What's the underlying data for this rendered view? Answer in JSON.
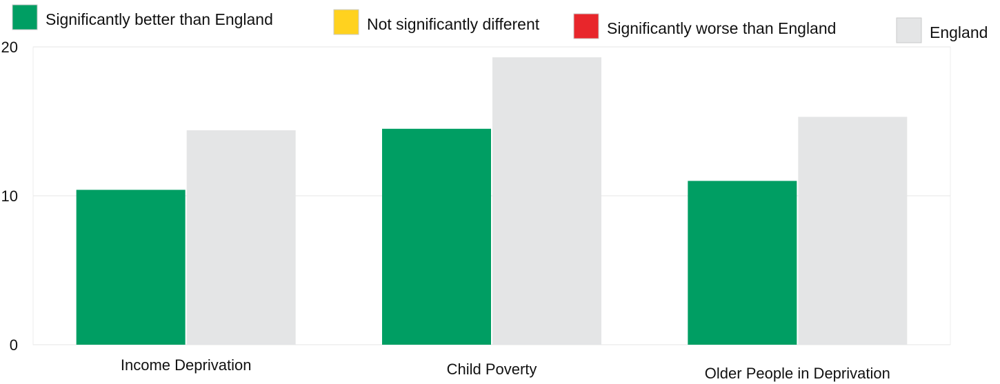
{
  "chart_data": {
    "type": "bar",
    "categories": [
      "Income Deprivation",
      "Child Poverty",
      "Older People in Deprivation"
    ],
    "series": [
      {
        "key": "local_area",
        "values": [
          10.4,
          14.5,
          11.0
        ],
        "color": "#009e63"
      },
      {
        "name": "England",
        "key": "england",
        "values": [
          14.4,
          19.3,
          15.3
        ],
        "color": "#e4e5e6"
      }
    ],
    "legend": [
      {
        "label": "Significantly better than England",
        "color": "#009e63"
      },
      {
        "label": "Not significantly different",
        "color": "#ffd21f"
      },
      {
        "label": "Significantly worse than England",
        "color": "#e8262b"
      },
      {
        "label": "England",
        "color": "#e4e5e6"
      }
    ],
    "legend_position": "top",
    "ylim": [
      0,
      20
    ],
    "yticks": [
      "0",
      "10",
      "20"
    ],
    "grid": true,
    "title": "",
    "xlabel": "",
    "ylabel": ""
  }
}
